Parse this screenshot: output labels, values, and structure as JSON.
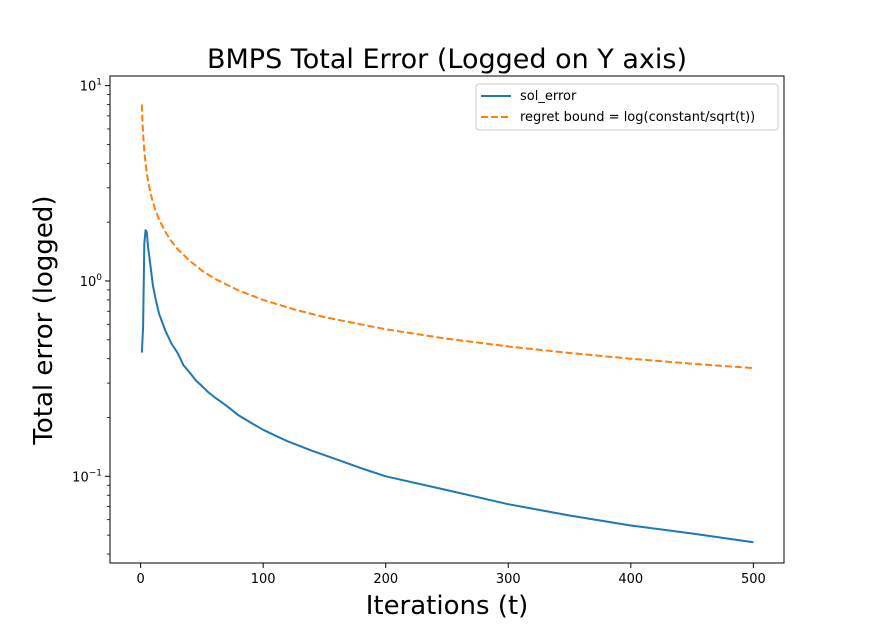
{
  "chart_data": {
    "type": "line",
    "title": "BMPS Total Error (Logged on Y axis)",
    "xlabel": "Iterations (t)",
    "ylabel": "Total error (logged)",
    "xlim": [
      -25,
      525
    ],
    "ylim": [
      0.036,
      11.2
    ],
    "yscale": "log",
    "xticks": [
      0,
      100,
      200,
      300,
      400,
      500
    ],
    "xtick_labels": [
      "0",
      "100",
      "200",
      "300",
      "400",
      "500"
    ],
    "yticks": [
      0.1,
      1,
      10
    ],
    "ytick_base": "10",
    "ytick_exponents": [
      "−1",
      "0",
      "1"
    ],
    "grid": false,
    "legend_position": "top-right",
    "series": [
      {
        "name": "sol_error",
        "color": "#1f77b4",
        "style": "solid",
        "x": [
          1,
          2,
          3,
          4,
          5,
          6,
          8,
          10,
          12,
          15,
          20,
          25,
          30,
          35,
          40,
          45,
          50,
          55,
          60,
          70,
          80,
          90,
          100,
          120,
          140,
          160,
          180,
          200,
          250,
          300,
          350,
          400,
          450,
          500
        ],
        "y": [
          0.43,
          0.58,
          1.55,
          1.82,
          1.78,
          1.5,
          1.2,
          0.95,
          0.82,
          0.68,
          0.56,
          0.48,
          0.43,
          0.37,
          0.34,
          0.31,
          0.29,
          0.27,
          0.255,
          0.23,
          0.205,
          0.188,
          0.173,
          0.151,
          0.135,
          0.122,
          0.11,
          0.1,
          0.085,
          0.072,
          0.063,
          0.056,
          0.051,
          0.046
        ]
      },
      {
        "name": "regret bound = log(constant/sqrt(t))",
        "color": "#ff7f0e",
        "style": "dashed",
        "x": [
          1,
          1.5,
          2,
          3,
          4,
          5,
          6,
          8,
          10,
          12,
          15,
          20,
          25,
          30,
          40,
          50,
          60,
          80,
          100,
          125,
          150,
          200,
          250,
          300,
          350,
          400,
          450,
          500
        ],
        "y": [
          8.0,
          6.53,
          5.66,
          4.62,
          4.0,
          3.58,
          3.27,
          2.83,
          2.53,
          2.31,
          2.07,
          1.79,
          1.6,
          1.46,
          1.27,
          1.13,
          1.03,
          0.894,
          0.8,
          0.716,
          0.653,
          0.566,
          0.506,
          0.462,
          0.428,
          0.4,
          0.377,
          0.358
        ]
      }
    ]
  }
}
